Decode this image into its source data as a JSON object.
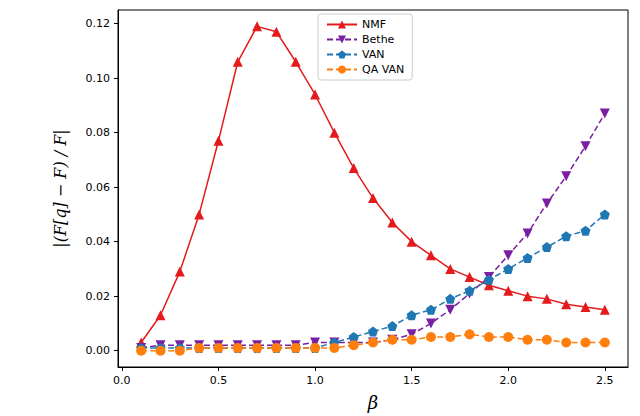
{
  "chart_data": {
    "type": "line",
    "x_label": "β",
    "y_label": "|(F[q] − F) / F|",
    "x": [
      0.1,
      0.2,
      0.3,
      0.4,
      0.5,
      0.6,
      0.7,
      0.8,
      0.9,
      1.0,
      1.1,
      1.2,
      1.3,
      1.4,
      1.5,
      1.6,
      1.7,
      1.8,
      1.9,
      2.0,
      2.1,
      2.2,
      2.3,
      2.4,
      2.5
    ],
    "series": [
      {
        "name": "NMF",
        "color": "#e41a1c",
        "marker": "triangle",
        "line_style": "solid",
        "values": [
          0.003,
          0.013,
          0.029,
          0.05,
          0.077,
          0.106,
          0.119,
          0.117,
          0.106,
          0.094,
          0.08,
          0.067,
          0.056,
          0.047,
          0.04,
          0.035,
          0.03,
          0.027,
          0.024,
          0.022,
          0.02,
          0.019,
          0.017,
          0.016,
          0.015
        ]
      },
      {
        "name": "Bethe",
        "color": "#7b1fa2",
        "marker": "triangle-down",
        "line_style": "dashed",
        "values": [
          0.001,
          0.002,
          0.002,
          0.002,
          0.002,
          0.002,
          0.002,
          0.002,
          0.002,
          0.003,
          0.003,
          0.003,
          0.003,
          0.004,
          0.006,
          0.01,
          0.015,
          0.021,
          0.027,
          0.035,
          0.043,
          0.054,
          0.064,
          0.075,
          0.087
        ]
      },
      {
        "name": "VAN",
        "color": "#1f77b4",
        "marker": "pentagon",
        "line_style": "dashed",
        "values": [
          0.001,
          0.001,
          0.001,
          0.001,
          0.001,
          0.001,
          0.001,
          0.001,
          0.001,
          0.001,
          0.003,
          0.005,
          0.007,
          0.009,
          0.013,
          0.015,
          0.019,
          0.022,
          0.026,
          0.03,
          0.034,
          0.038,
          0.042,
          0.044,
          0.05
        ]
      },
      {
        "name": "QA VAN",
        "color": "#ff7f0e",
        "marker": "circle",
        "line_style": "dashed",
        "values": [
          0.0,
          0.0,
          0.0,
          0.001,
          0.001,
          0.001,
          0.001,
          0.001,
          0.001,
          0.001,
          0.001,
          0.002,
          0.003,
          0.004,
          0.004,
          0.005,
          0.005,
          0.006,
          0.005,
          0.005,
          0.004,
          0.004,
          0.003,
          0.003,
          0.003
        ]
      }
    ],
    "xlim": [
      -0.02,
      2.62
    ],
    "xticks": [
      {
        "value": 0,
        "label": "0.0"
      },
      {
        "value": 0.5,
        "label": "0.5"
      },
      {
        "value": 1.0,
        "label": "1.0"
      },
      {
        "value": 1.5,
        "label": "1.5"
      },
      {
        "value": 2.0,
        "label": "2.0"
      },
      {
        "value": 2.5,
        "label": "2.5"
      }
    ],
    "ylim": [
      -0.006,
      0.125
    ],
    "yticks": [
      {
        "value": 0,
        "label": "0.00"
      },
      {
        "value": 0.02,
        "label": "0.02"
      },
      {
        "value": 0.04,
        "label": "0.04"
      },
      {
        "value": 0.06,
        "label": "0.06"
      },
      {
        "value": 0.08,
        "label": "0.08"
      },
      {
        "value": 0.1,
        "label": "0.10"
      },
      {
        "value": 0.12,
        "label": "0.12"
      }
    ],
    "legend": "top",
    "grid": false
  }
}
